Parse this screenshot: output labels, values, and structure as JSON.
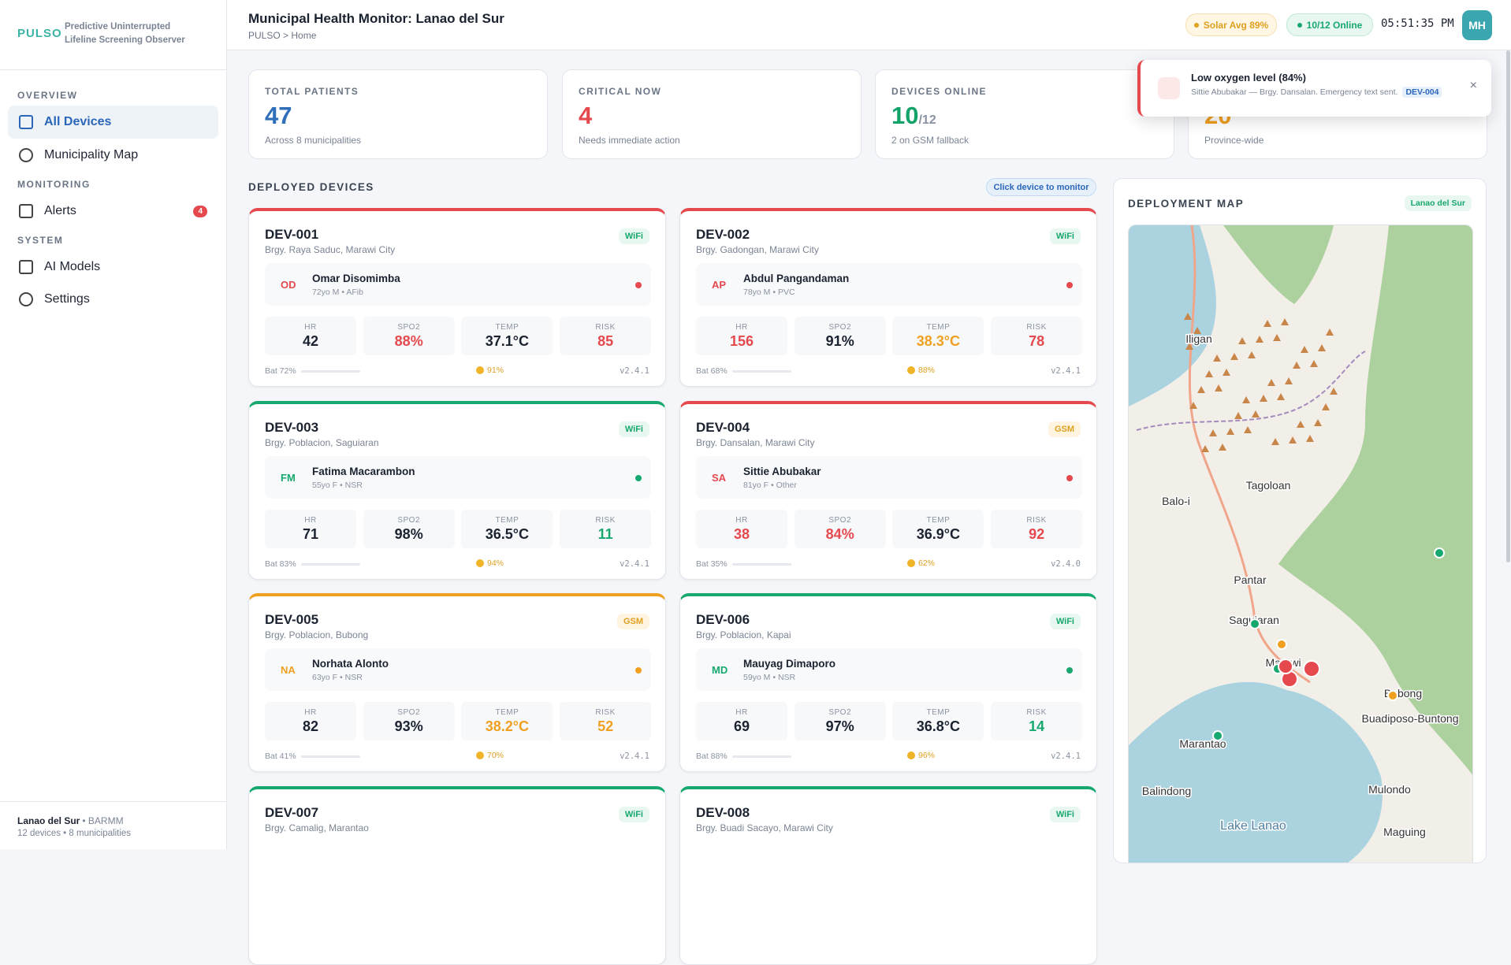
{
  "sidebar": {
    "logo": "PULSO",
    "tagline": [
      "Predictive Uninterrupted",
      "Lifeline Screening Observer"
    ],
    "sections": [
      {
        "title": "OVERVIEW",
        "items": [
          {
            "label": "All Devices",
            "active": true
          },
          {
            "label": "Municipality Map"
          }
        ]
      },
      {
        "title": "MONITORING",
        "items": [
          {
            "label": "Alerts",
            "badge": "4"
          }
        ]
      },
      {
        "title": "SYSTEM",
        "items": [
          {
            "label": "AI Models"
          },
          {
            "label": "Settings"
          }
        ]
      }
    ],
    "footer": {
      "province": "Lanao del Sur",
      "region": "• BARMM",
      "summary": "12 devices • 8 municipalities"
    }
  },
  "header": {
    "title": "Municipal Health Monitor: Lanao del Sur",
    "breadcrumb": "PULSO > Home",
    "solar": "Solar Avg 89%",
    "online": "10/12 Online",
    "time": "05:51:35 PM",
    "avatar": "MH"
  },
  "stats": [
    {
      "label": "TOTAL PATIENTS",
      "value": "47",
      "unit": "",
      "sub": "Across 8 municipalities",
      "color": "#2f6fba"
    },
    {
      "label": "CRITICAL NOW",
      "value": "4",
      "unit": "",
      "sub": "Needs immediate action",
      "color": "#e5484d"
    },
    {
      "label": "DEVICES ONLINE",
      "value": "10",
      "unit": "/12",
      "sub": "2 on GSM fallback",
      "color": "#12a36a"
    },
    {
      "label": null,
      "value": "20",
      "unit": "",
      "sub": "Province-wide",
      "color": "#f0a020"
    }
  ],
  "toast": {
    "title": "Low oxygen level (84%)",
    "text": "Sittie Abubakar — Brgy. Dansalan. Emergency text sent.",
    "device": "DEV-004",
    "close": "×"
  },
  "devices_section": {
    "title": "DEPLOYED DEVICES",
    "hint": "Click device to monitor",
    "metric_labels": [
      "HR",
      "SPO2",
      "TEMP",
      "RISK"
    ]
  },
  "devices": [
    {
      "id": "DEV-001",
      "location": "Brgy. Raya Saduc, Marawi City",
      "conn": "WiFi",
      "initials": "OD",
      "name": "Omar Disomimba",
      "meta": "72yo M • AFib",
      "accent": "#e5484d",
      "metrics": [
        {
          "value": "42",
          "color": "#1b2230"
        },
        {
          "value": "88%",
          "color": "#e5484d"
        },
        {
          "value": "37.1°C",
          "color": "#1b2230"
        },
        {
          "value": "85",
          "color": "#e5484d"
        }
      ],
      "battery": "Bat 72%",
      "solar": "91%",
      "version": "v2.4.1"
    },
    {
      "id": "DEV-002",
      "location": "Brgy. Gadongan, Marawi City",
      "conn": "WiFi",
      "initials": "AP",
      "name": "Abdul Pangandaman",
      "meta": "78yo M • PVC",
      "accent": "#e5484d",
      "metrics": [
        {
          "value": "156",
          "color": "#e5484d"
        },
        {
          "value": "91%",
          "color": "#1b2230"
        },
        {
          "value": "38.3°C",
          "color": "#f0a020"
        },
        {
          "value": "78",
          "color": "#e5484d"
        }
      ],
      "battery": "Bat 68%",
      "solar": "88%",
      "version": "v2.4.1"
    },
    {
      "id": "DEV-003",
      "location": "Brgy. Poblacion, Saguiaran",
      "conn": "WiFi",
      "initials": "FM",
      "name": "Fatima Macarambon",
      "meta": "55yo F • NSR",
      "accent": "#16a86e",
      "metrics": [
        {
          "value": "71",
          "color": "#1b2230"
        },
        {
          "value": "98%",
          "color": "#1b2230"
        },
        {
          "value": "36.5°C",
          "color": "#1b2230"
        },
        {
          "value": "11",
          "color": "#16a86e"
        }
      ],
      "battery": "Bat 83%",
      "solar": "94%",
      "version": "v2.4.1"
    },
    {
      "id": "DEV-004",
      "location": "Brgy. Dansalan, Marawi City",
      "conn": "GSM",
      "initials": "SA",
      "name": "Sittie Abubakar",
      "meta": "81yo F • Other",
      "accent": "#e5484d",
      "metrics": [
        {
          "value": "38",
          "color": "#e5484d"
        },
        {
          "value": "84%",
          "color": "#e5484d"
        },
        {
          "value": "36.9°C",
          "color": "#1b2230"
        },
        {
          "value": "92",
          "color": "#e5484d"
        }
      ],
      "battery": "Bat 35%",
      "solar": "62%",
      "version": "v2.4.0"
    },
    {
      "id": "DEV-005",
      "location": "Brgy. Poblacion, Bubong",
      "conn": "GSM",
      "initials": "NA",
      "name": "Norhata Alonto",
      "meta": "63yo F • NSR",
      "accent": "#f0a020",
      "metrics": [
        {
          "value": "82",
          "color": "#1b2230"
        },
        {
          "value": "93%",
          "color": "#1b2230"
        },
        {
          "value": "38.2°C",
          "color": "#f0a020"
        },
        {
          "value": "52",
          "color": "#f0a020"
        }
      ],
      "battery": "Bat 41%",
      "solar": "70%",
      "version": "v2.4.1"
    },
    {
      "id": "DEV-006",
      "location": "Brgy. Poblacion, Kapai",
      "conn": "WiFi",
      "initials": "MD",
      "name": "Mauyag Dimaporo",
      "meta": "59yo M • NSR",
      "accent": "#16a86e",
      "metrics": [
        {
          "value": "69",
          "color": "#1b2230"
        },
        {
          "value": "97%",
          "color": "#1b2230"
        },
        {
          "value": "36.8°C",
          "color": "#1b2230"
        },
        {
          "value": "14",
          "color": "#16a86e"
        }
      ],
      "battery": "Bat 88%",
      "solar": "96%",
      "version": "v2.4.1"
    },
    {
      "id": "DEV-007",
      "location": "Brgy. Camalig, Marantao",
      "conn": "WiFi",
      "accent": "#16a86e"
    },
    {
      "id": "DEV-008",
      "location": "Brgy. Buadi Sacayo, Marawi City",
      "conn": "WiFi",
      "accent": "#16a86e"
    }
  ],
  "map": {
    "title": "DEPLOYMENT MAP",
    "region": "Lanao del Sur",
    "places": [
      "Iligan",
      "Balo-i",
      "Tagoloan",
      "Pantar",
      "Saguiaran",
      "Marawi",
      "Bubong",
      "Buadiposo-Buntong",
      "Marantao",
      "Balindong",
      "Mulondo",
      "Lake Lanao",
      "Maguing"
    ]
  }
}
